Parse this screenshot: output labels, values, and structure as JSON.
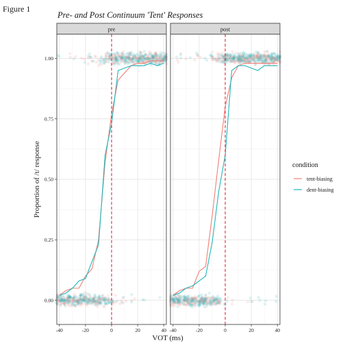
{
  "figure_label": "Figure 1",
  "chart_data": {
    "type": "line",
    "title": "Pre- and Post Continuum 'Tent' Responses",
    "xlabel": "VOT (ms)",
    "ylabel": "Proportion of /t/ response",
    "xlim": [
      -42,
      42
    ],
    "ylim": [
      -0.1,
      1.1
    ],
    "x_ticks": [
      -40,
      -20,
      0,
      20,
      40
    ],
    "y_ticks": [
      0.0,
      0.25,
      0.5,
      0.75,
      1.0
    ],
    "y_tick_labels": [
      "0.00",
      "0.25",
      "0.50",
      "0.75",
      "1.00"
    ],
    "grid": true,
    "facets": [
      "pre",
      "post"
    ],
    "vline": {
      "x": 0,
      "color": "#e8273c",
      "style": "dashed"
    },
    "legend": {
      "title": "condition",
      "position": "right",
      "entries": [
        {
          "name": "tent-biasing",
          "color": "#f07f76"
        },
        {
          "name": "dent-biasing",
          "color": "#1fb6bb"
        }
      ]
    },
    "x": [
      -40,
      -35,
      -30,
      -25,
      -20,
      -15,
      -10,
      -5,
      0,
      5,
      10,
      15,
      20,
      25,
      30,
      35,
      40
    ],
    "panels": [
      {
        "facet": "pre",
        "series": [
          {
            "name": "tent-biasing",
            "values": [
              0.02,
              0.04,
              0.05,
              0.05,
              0.1,
              0.13,
              0.25,
              0.57,
              0.77,
              0.91,
              0.94,
              0.97,
              0.98,
              0.98,
              0.99,
              0.99,
              0.99
            ]
          },
          {
            "name": "dent-biasing",
            "values": [
              0.02,
              0.03,
              0.05,
              0.08,
              0.09,
              0.16,
              0.23,
              0.6,
              0.73,
              0.95,
              0.96,
              0.97,
              0.97,
              0.97,
              0.98,
              0.97,
              0.98
            ]
          }
        ]
      },
      {
        "facet": "post",
        "series": [
          {
            "name": "tent-biasing",
            "values": [
              0.02,
              0.04,
              0.05,
              0.05,
              0.12,
              0.14,
              0.35,
              0.58,
              0.8,
              0.92,
              0.97,
              0.98,
              0.98,
              0.98,
              0.98,
              0.98,
              0.98
            ]
          },
          {
            "name": "dent-biasing",
            "values": [
              0.02,
              0.03,
              0.05,
              0.06,
              0.08,
              0.1,
              0.24,
              0.45,
              0.6,
              0.95,
              0.97,
              0.97,
              0.96,
              0.95,
              0.97,
              0.97,
              0.97
            ]
          }
        ]
      }
    ],
    "jitter_points": {
      "y_levels": [
        0,
        1
      ],
      "alpha": 0.15
    }
  }
}
